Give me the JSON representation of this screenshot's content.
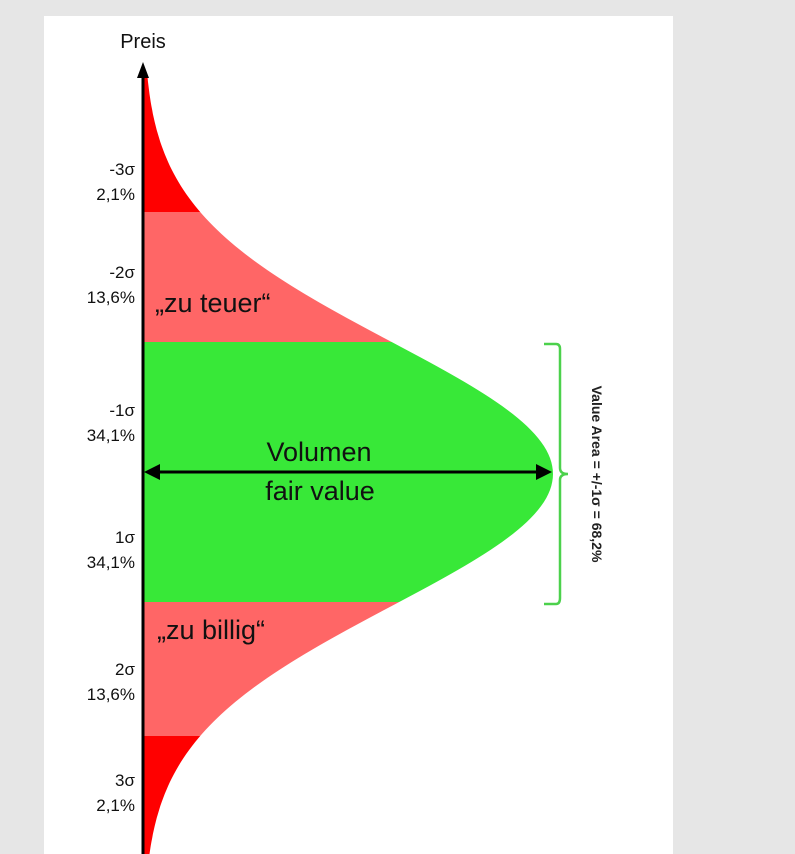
{
  "axis": {
    "label": "Preis"
  },
  "bands": [
    {
      "sigma": "-3σ",
      "percent": "2,1%",
      "color": "#ff0000"
    },
    {
      "sigma": "-2σ",
      "percent": "13,6%",
      "color": "#ff6666"
    },
    {
      "sigma": "-1σ",
      "percent": "34,1%",
      "color": "#38e838"
    },
    {
      "sigma": "1σ",
      "percent": "34,1%",
      "color": "#38e838"
    },
    {
      "sigma": "2σ",
      "percent": "13,6%",
      "color": "#ff6666"
    },
    {
      "sigma": "3σ",
      "percent": "2,1%",
      "color": "#ff0000"
    }
  ],
  "zones": {
    "expensive": "„zu teuer“",
    "cheap": "„zu billig“"
  },
  "center": {
    "line1": "Volumen",
    "line2": "fair value"
  },
  "value_area": {
    "label": "Value Area = +/-1σ = 68,2%",
    "bracket_color": "#4cd14c"
  }
}
